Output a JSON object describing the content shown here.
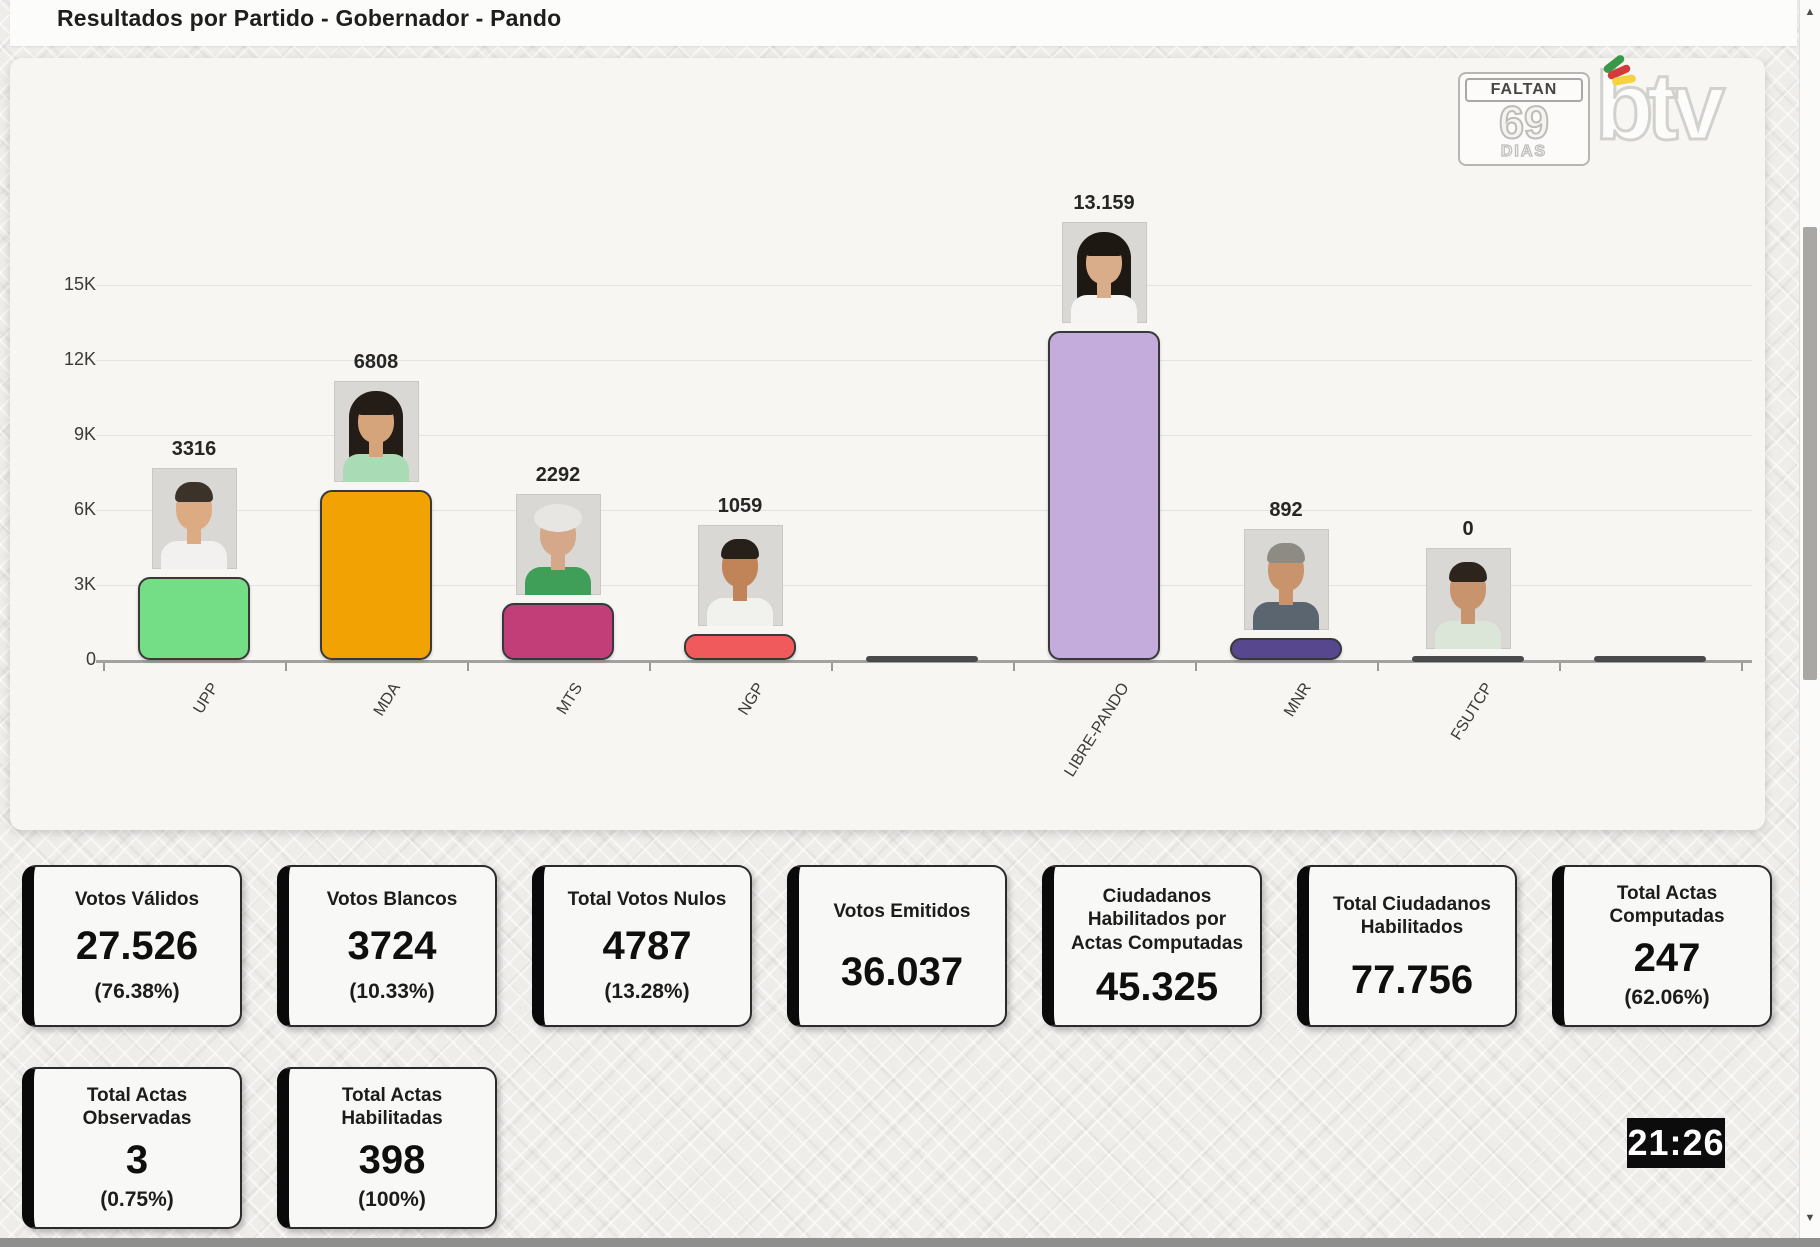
{
  "header": {
    "title": "Resultados por Partido - Gobernador - Pando"
  },
  "countdown": {
    "label_top": "FALTAN",
    "number": "69",
    "label_bottom": "DIAS"
  },
  "logo": {
    "text": "btv",
    "flag_colors": [
      "#3a9948",
      "#d33b3b",
      "#f5d33f"
    ]
  },
  "clock": {
    "time": "21:26"
  },
  "icons": {
    "scroll_up": "▲",
    "scroll_down": "▼"
  },
  "chart_data": {
    "type": "bar",
    "title": "Resultados por Partido - Gobernador - Pando",
    "xlabel": "",
    "ylabel": "",
    "ylim": [
      0,
      15000
    ],
    "grid": true,
    "yticks": [
      {
        "v": 0,
        "label": "0"
      },
      {
        "v": 3000,
        "label": "3K"
      },
      {
        "v": 6000,
        "label": "6K"
      },
      {
        "v": 9000,
        "label": "9K"
      },
      {
        "v": 12000,
        "label": "12K"
      },
      {
        "v": 15000,
        "label": "15K"
      }
    ],
    "categories": [
      "UPP",
      "MDA",
      "MTS",
      "NGP",
      "",
      "LIBRE-PANDO",
      "MNR",
      "FSUTCP",
      ""
    ],
    "values": [
      3316,
      6808,
      2292,
      1059,
      0,
      13159,
      892,
      0,
      0
    ],
    "value_labels": [
      "3316",
      "6808",
      "2292",
      "1059",
      "",
      "13.159",
      "892",
      "0",
      ""
    ],
    "colors": [
      "#74DE87",
      "#F2A202",
      "#C13E78",
      "#F15A5C",
      "#4a4a4a",
      "#C4ACDC",
      "#57478F",
      "#4a4a4a",
      "#4a4a4a"
    ],
    "portraits": [
      {
        "hair": "#3b322a",
        "skin": "#dcab83",
        "shirt": "#f2f1ef",
        "style": "short"
      },
      {
        "hair": "#241c16",
        "skin": "#d6a47b",
        "shirt": "#a9dcb4",
        "style": "long"
      },
      {
        "hair": "#e7e6e3",
        "skin": "#d6a88a",
        "shirt": "#3f9e57",
        "style": "curly"
      },
      {
        "hair": "#27201a",
        "skin": "#c08458",
        "shirt": "#f1f1ee",
        "style": "short"
      },
      null,
      {
        "hair": "#1e1813",
        "skin": "#d9ad89",
        "shirt": "#f6f5f3",
        "style": "long"
      },
      {
        "hair": "#8e8b85",
        "skin": "#c9946c",
        "shirt": "#5b6570",
        "style": "short"
      },
      {
        "hair": "#2c241d",
        "skin": "#c8946e",
        "shirt": "#dce6d8",
        "style": "short"
      },
      null
    ]
  },
  "stats": {
    "row1": [
      {
        "title": "Votos Válidos",
        "value": "27.526",
        "pct": "(76.38%)"
      },
      {
        "title": "Votos Blancos",
        "value": "3724",
        "pct": "(10.33%)"
      },
      {
        "title": "Total Votos Nulos",
        "value": "4787",
        "pct": "(13.28%)"
      },
      {
        "title": "Votos Emitidos",
        "value": "36.037",
        "pct": ""
      },
      {
        "title": "Ciudadanos Habilitados por Actas Computadas",
        "value": "45.325",
        "pct": ""
      },
      {
        "title": "Total Ciudadanos Habilitados",
        "value": "77.756",
        "pct": ""
      },
      {
        "title": "Total Actas Computadas",
        "value": "247",
        "pct": "(62.06%)"
      }
    ],
    "row2": [
      {
        "title": "Total Actas Observadas",
        "value": "3",
        "pct": "(0.75%)"
      },
      {
        "title": "Total Actas Habilitadas",
        "value": "398",
        "pct": "(100%)"
      }
    ]
  }
}
